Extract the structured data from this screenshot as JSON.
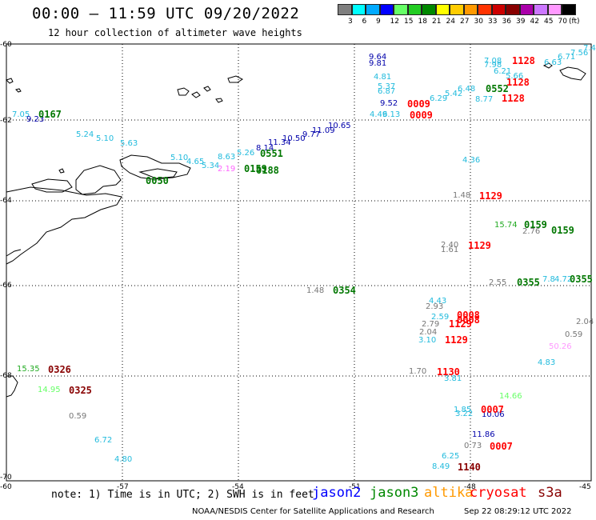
{
  "header": {
    "title": "00:00 – 11:59 UTC 09/20/2022",
    "subtitle": "12 hour collection of altimeter wave heights"
  },
  "colorbar": {
    "colors": [
      "#7f7f7f",
      "#00ffff",
      "#00aaff",
      "#0000ff",
      "#66ff66",
      "#22cc22",
      "#008800",
      "#ffff00",
      "#ffcc00",
      "#ff9900",
      "#ff3300",
      "#cc0000",
      "#880000",
      "#aa00aa",
      "#cc77ff",
      "#ff99ff",
      "#000000"
    ],
    "labels": [
      "3",
      "6",
      "9",
      "12",
      "15",
      "18",
      "21",
      "24",
      "27",
      "30",
      "33",
      "36",
      "39",
      "42",
      "45",
      "70",
      "(ft)"
    ]
  },
  "axes": {
    "lat_labels": [
      "-60",
      "-62",
      "-64",
      "-66",
      "-68",
      "-70"
    ],
    "lon_labels": [
      "-57",
      "-54",
      "-51",
      "-48",
      "-45"
    ]
  },
  "points": [
    {
      "t": "9.64",
      "c": "#0000aa"
    },
    {
      "t": "9.81",
      "c": "#0000aa"
    },
    {
      "t": "4.81",
      "c": "#22bbdd"
    },
    {
      "t": "5.37",
      "c": "#22bbdd"
    },
    {
      "t": "6.87",
      "c": "#22bbdd"
    },
    {
      "t": "9.52",
      "c": "#0000aa"
    },
    {
      "t": "4.49",
      "c": "#22bbdd"
    },
    {
      "t": "6.13",
      "c": "#22bbdd"
    },
    {
      "t": "6.29",
      "c": "#22bbdd"
    },
    {
      "t": "5.42",
      "c": "#22bbdd"
    },
    {
      "t": "6.48",
      "c": "#22bbdd"
    },
    {
      "t": "8.77",
      "c": "#22bbdd"
    },
    {
      "t": "7.08",
      "c": "#22bbdd"
    },
    {
      "t": "7.98",
      "c": "#22bbdd"
    },
    {
      "t": "6.63",
      "c": "#22bbdd"
    },
    {
      "t": "6.71",
      "c": "#22bbdd"
    },
    {
      "t": "7.56",
      "c": "#22bbdd"
    },
    {
      "t": "7.4",
      "c": "#22bbdd"
    },
    {
      "t": "6.21",
      "c": "#22bbdd"
    },
    {
      "t": "5.66",
      "c": "#22bbdd"
    },
    {
      "t": "7.05",
      "c": "#22bbdd"
    },
    {
      "t": "9.23",
      "c": "#0000aa"
    },
    {
      "t": "10.65",
      "c": "#0000aa"
    },
    {
      "t": "11.09",
      "c": "#0000aa"
    },
    {
      "t": "9.77",
      "c": "#0000aa"
    },
    {
      "t": "10.50",
      "c": "#0000aa"
    },
    {
      "t": "11.34",
      "c": "#0000aa"
    },
    {
      "t": "8.14",
      "c": "#0000aa"
    },
    {
      "t": "8.63",
      "c": "#22bbdd"
    },
    {
      "t": "5.26",
      "c": "#22bbdd"
    },
    {
      "t": "5.10",
      "c": "#22bbdd"
    },
    {
      "t": "4.65",
      "c": "#22bbdd"
    },
    {
      "t": "5.34",
      "c": "#22bbdd"
    },
    {
      "t": "2.19",
      "c": "#ff66ff"
    },
    {
      "t": "4.36",
      "c": "#22bbdd"
    },
    {
      "t": "1.48",
      "c": "#777777"
    },
    {
      "t": "15.74",
      "c": "#22aa22"
    },
    {
      "t": "2.76",
      "c": "#777777"
    },
    {
      "t": "2.40",
      "c": "#777777"
    },
    {
      "t": "1.61",
      "c": "#777777"
    },
    {
      "t": "1.48",
      "c": "#777777"
    },
    {
      "t": "2.55",
      "c": "#777777"
    },
    {
      "t": "7.8",
      "c": "#22bbdd"
    },
    {
      "t": "4.72",
      "c": "#22bbdd"
    },
    {
      "t": "4.43",
      "c": "#22bbdd"
    },
    {
      "t": "2.93",
      "c": "#777777"
    },
    {
      "t": "2.59",
      "c": "#22bbdd"
    },
    {
      "t": "2.79",
      "c": "#777777"
    },
    {
      "t": "2.04",
      "c": "#777777"
    },
    {
      "t": "3.10",
      "c": "#22bbdd"
    },
    {
      "t": "2.04",
      "c": "#777777"
    },
    {
      "t": "0.59",
      "c": "#777777"
    },
    {
      "t": "50.26",
      "c": "#ff99ff"
    },
    {
      "t": "4.83",
      "c": "#22bbdd"
    },
    {
      "t": "1.70",
      "c": "#777777"
    },
    {
      "t": "3.81",
      "c": "#22bbdd"
    },
    {
      "t": "14.66",
      "c": "#66ff66"
    },
    {
      "t": "1.85",
      "c": "#22bbdd"
    },
    {
      "t": "3.22",
      "c": "#22bbdd"
    },
    {
      "t": "10.06",
      "c": "#0000aa"
    },
    {
      "t": "11.86",
      "c": "#0000aa"
    },
    {
      "t": "0.73",
      "c": "#777777"
    },
    {
      "t": "6.25",
      "c": "#22bbdd"
    },
    {
      "t": "8.49",
      "c": "#22bbdd"
    },
    {
      "t": "15.35",
      "c": "#22aa22"
    },
    {
      "t": "14.95",
      "c": "#66ff66"
    },
    {
      "t": "0.59",
      "c": "#777777"
    },
    {
      "t": "6.72",
      "c": "#22bbdd"
    },
    {
      "t": "4.80",
      "c": "#22bbdd"
    },
    {
      "t": "5.24",
      "c": "#22bbdd"
    },
    {
      "t": "5.10",
      "c": "#22bbdd"
    },
    {
      "t": "5.63",
      "c": "#22bbdd"
    }
  ],
  "cycles": [
    {
      "t": "0167",
      "c": "#007700"
    },
    {
      "t": "0551",
      "c": "#007700"
    },
    {
      "t": "0159",
      "c": "#007700"
    },
    {
      "t": "0188",
      "c": "#007700"
    },
    {
      "t": "0050",
      "c": "#007700"
    },
    {
      "t": "0009",
      "c": "#ff0000"
    },
    {
      "t": "0009",
      "c": "#ff0000"
    },
    {
      "t": "1128",
      "c": "#ff0000"
    },
    {
      "t": "1128",
      "c": "#ff0000"
    },
    {
      "t": "1128",
      "c": "#ff0000"
    },
    {
      "t": "0552",
      "c": "#007700"
    },
    {
      "t": "1129",
      "c": "#ff0000"
    },
    {
      "t": "0159",
      "c": "#007700"
    },
    {
      "t": "0159",
      "c": "#007700"
    },
    {
      "t": "1129",
      "c": "#ff0000"
    },
    {
      "t": "0354",
      "c": "#007700"
    },
    {
      "t": "0355",
      "c": "#007700"
    },
    {
      "t": "0355",
      "c": "#007700"
    },
    {
      "t": "0008",
      "c": "#ff0000"
    },
    {
      "t": "0008",
      "c": "#ff0000"
    },
    {
      "t": "1129",
      "c": "#ff0000"
    },
    {
      "t": "1129",
      "c": "#ff0000"
    },
    {
      "t": "1130",
      "c": "#ff0000"
    },
    {
      "t": "0007",
      "c": "#ff0000"
    },
    {
      "t": "0007",
      "c": "#ff0000"
    },
    {
      "t": "1140",
      "c": "#880000"
    },
    {
      "t": "0326",
      "c": "#880000"
    },
    {
      "t": "0325",
      "c": "#880000"
    }
  ],
  "footer": {
    "note": "note: 1) Time is in UTC; 2) SWH is in feet",
    "legend": [
      {
        "t": "jason2",
        "c": "#0000ff"
      },
      {
        "t": "jason3",
        "c": "#008800"
      },
      {
        "t": "altika",
        "c": "#ff9900"
      },
      {
        "t": "cryosat",
        "c": "#ff0000"
      },
      {
        "t": "s3a",
        "c": "#880000"
      }
    ],
    "credit": "NOAA/NESDIS Center for Satellite Applications and Research",
    "timestamp": "Sep 22 08:29:12 UTC 2022"
  }
}
